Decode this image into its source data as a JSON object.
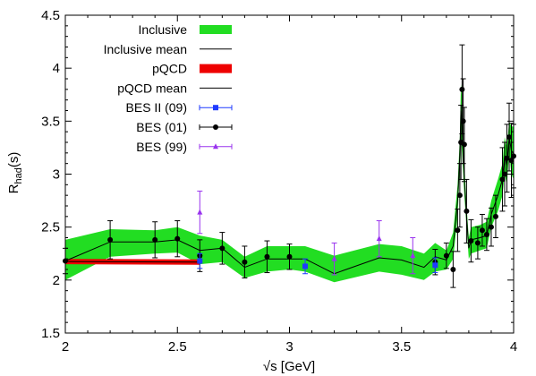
{
  "chart_data": {
    "type": "line",
    "xlabel": "√s [GeV]",
    "ylabel_main": "R",
    "ylabel_sub": "had",
    "ylabel_suffix": "(s)",
    "xlim": [
      2,
      4
    ],
    "ylim": [
      1.5,
      4.5
    ],
    "xticks": [
      2,
      2.5,
      3,
      3.5,
      4
    ],
    "xtick_labels": [
      "2",
      "2.5",
      "3",
      "3.5",
      "4"
    ],
    "yticks": [
      1.5,
      2,
      2.5,
      3,
      3.5,
      4,
      4.5
    ],
    "ytick_labels": [
      "1.5",
      "2",
      "2.5",
      "3",
      "3.5",
      "4",
      "4.5"
    ],
    "minor_xticks": [
      2.1,
      2.2,
      2.3,
      2.4,
      2.6,
      2.7,
      2.8,
      2.9,
      3.1,
      3.2,
      3.3,
      3.4,
      3.6,
      3.7,
      3.8,
      3.9
    ],
    "minor_yticks": [
      1.6,
      1.7,
      1.8,
      1.9,
      2.1,
      2.2,
      2.3,
      2.4,
      2.6,
      2.7,
      2.8,
      2.9,
      3.1,
      3.2,
      3.3,
      3.4,
      3.6,
      3.7,
      3.8,
      3.9,
      4.1,
      4.2,
      4.3,
      4.4
    ],
    "grid": false,
    "legend_position": "top-left",
    "legend": [
      {
        "key": "inclusive",
        "label": "Inclusive",
        "style": "band",
        "color": "#22dd22"
      },
      {
        "key": "inclusive_mean",
        "label": "Inclusive mean",
        "style": "line",
        "color": "#000000"
      },
      {
        "key": "pqcd",
        "label": "pQCD",
        "style": "band",
        "color": "#ee0000"
      },
      {
        "key": "pqcd_mean",
        "label": "pQCD mean",
        "style": "line",
        "color": "#000000"
      },
      {
        "key": "bes2_09",
        "label": "BES II (09)",
        "style": "square-errorbar",
        "color": "#1f3bff"
      },
      {
        "key": "bes_01",
        "label": "BES (01)",
        "style": "circle-errorbar",
        "color": "#000000"
      },
      {
        "key": "bes_99",
        "label": "BES (99)",
        "style": "triangle-errorbar",
        "color": "#9933ee"
      }
    ],
    "inclusive_band": {
      "x": [
        2.0,
        2.2,
        2.4,
        2.5,
        2.6,
        2.7,
        2.8,
        2.9,
        3.0,
        3.07,
        3.2,
        3.4,
        3.5,
        3.6,
        3.65,
        3.7,
        3.73,
        3.75,
        3.76,
        3.765,
        3.77,
        3.78,
        3.79,
        3.8,
        3.81,
        3.85,
        3.88,
        3.9,
        3.93,
        3.95,
        3.96,
        3.97,
        3.98,
        3.99,
        4.0
      ],
      "lower": [
        2.0,
        2.22,
        2.25,
        2.26,
        2.15,
        2.17,
        2.02,
        2.08,
        2.1,
        2.08,
        1.98,
        2.08,
        2.05,
        2.0,
        2.08,
        2.1,
        2.2,
        2.6,
        3.05,
        3.35,
        3.2,
        2.8,
        2.5,
        2.2,
        2.25,
        2.28,
        2.3,
        2.5,
        2.65,
        2.8,
        3.0,
        2.9,
        3.2,
        3.0,
        2.95
      ],
      "upper": [
        2.38,
        2.48,
        2.47,
        2.5,
        2.42,
        2.38,
        2.22,
        2.32,
        2.32,
        2.32,
        2.23,
        2.34,
        2.32,
        2.25,
        2.35,
        2.28,
        2.45,
        2.9,
        3.35,
        3.85,
        3.7,
        3.1,
        2.7,
        2.4,
        2.5,
        2.52,
        2.55,
        2.75,
        2.95,
        3.1,
        3.35,
        3.25,
        3.5,
        3.45,
        3.45
      ]
    },
    "inclusive_mean": {
      "x": [
        2.0,
        2.2,
        2.4,
        2.5,
        2.6,
        2.7,
        2.8,
        2.9,
        3.0,
        3.07,
        3.2,
        3.4,
        3.5,
        3.6,
        3.65,
        3.7,
        3.73,
        3.75,
        3.76,
        3.765,
        3.77,
        3.78,
        3.79,
        3.8,
        3.81,
        3.85,
        3.88,
        3.9,
        3.93,
        3.95,
        3.96,
        3.97,
        3.98,
        3.99,
        4.0
      ],
      "y": [
        2.18,
        2.36,
        2.36,
        2.38,
        2.28,
        2.3,
        2.12,
        2.2,
        2.2,
        2.2,
        2.06,
        2.21,
        2.19,
        2.12,
        2.22,
        2.19,
        2.32,
        2.75,
        3.2,
        3.6,
        3.45,
        2.95,
        2.6,
        2.3,
        2.38,
        2.4,
        2.42,
        2.62,
        2.8,
        2.95,
        3.18,
        3.08,
        3.35,
        3.22,
        3.2
      ]
    },
    "pqcd_band": {
      "x": [
        2.0,
        2.6
      ],
      "lower": [
        2.15,
        2.145
      ],
      "upper": [
        2.2,
        2.195
      ]
    },
    "pqcd_mean": {
      "x": [
        2.0,
        2.6
      ],
      "y": [
        2.175,
        2.17
      ]
    },
    "bes2_09": {
      "x": [
        2.6,
        3.07,
        3.65
      ],
      "y": [
        2.18,
        2.13,
        2.14
      ],
      "err": [
        0.07,
        0.07,
        0.07
      ]
    },
    "bes_01": {
      "x": [
        2.0,
        2.2,
        2.4,
        2.5,
        2.6,
        2.7,
        2.8,
        2.9,
        3.0,
        3.65,
        3.7,
        3.73,
        3.75,
        3.76,
        3.765,
        3.77,
        3.775,
        3.78,
        3.79,
        3.81,
        3.84,
        3.86,
        3.88,
        3.9,
        3.92,
        3.95,
        3.96,
        3.97,
        3.98,
        3.99,
        4.0
      ],
      "y": [
        2.18,
        2.38,
        2.38,
        2.39,
        2.23,
        2.3,
        2.17,
        2.22,
        2.22,
        2.17,
        2.23,
        2.1,
        2.47,
        2.8,
        3.3,
        3.8,
        3.5,
        3.28,
        2.65,
        2.37,
        2.35,
        2.47,
        2.43,
        2.5,
        2.6,
        2.95,
        3.0,
        3.15,
        3.35,
        3.13,
        3.17
      ],
      "err": [
        0.12,
        0.18,
        0.17,
        0.17,
        0.15,
        0.15,
        0.15,
        0.15,
        0.12,
        0.12,
        0.12,
        0.17,
        0.2,
        0.3,
        0.35,
        0.42,
        0.4,
        0.35,
        0.3,
        0.2,
        0.15,
        0.15,
        0.15,
        0.18,
        0.2,
        0.3,
        0.3,
        0.32,
        0.32,
        0.35,
        0.3
      ]
    },
    "bes_99": {
      "x": [
        2.6,
        3.2,
        3.4,
        3.55
      ],
      "y": [
        2.64,
        2.2,
        2.39,
        2.23
      ],
      "err": [
        0.2,
        0.15,
        0.17,
        0.17
      ]
    }
  }
}
